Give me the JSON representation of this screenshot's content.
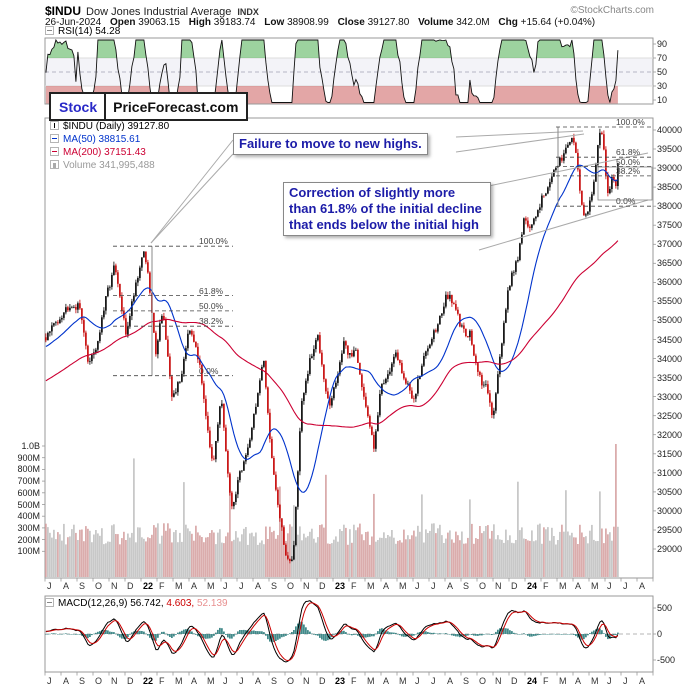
{
  "header": {
    "symbol": "$INDU",
    "name": "Dow Jones Industrial Average",
    "exchange": "INDX",
    "copyright": "©StockCharts.com",
    "date": "26-Jun-2024",
    "quote": {
      "open_label": "Open",
      "open": "39063.15",
      "high_label": "High",
      "high": "39183.74",
      "low_label": "Low",
      "low": "38908.99",
      "close_label": "Close",
      "close": "39127.80",
      "volume_label": "Volume",
      "volume": "342.0M",
      "chg_label": "Chg",
      "chg": "+15.64 (+0.04%)"
    }
  },
  "watermark": {
    "brand": "Stock",
    "site": "PriceForecast.com"
  },
  "rsi_panel": {
    "label": "RSI(14) 54.28"
  },
  "legend": {
    "series": "$INDU (Daily) 39127.80",
    "ma50": "MA(50) 38815.61",
    "ma200": "MA(200) 37151.43",
    "volume": "Volume 341,995,488"
  },
  "macd_panel": {
    "name": "MACD(12,26,9)",
    "v1": "56.742,",
    "v2": "4.603,",
    "v3": "52.139"
  },
  "chart_data": {
    "type": "candlestick",
    "title": "$INDU Dow Jones Industrial Average (Daily)",
    "timeframe": "daily, Jul-2021 to Jun-2024",
    "annotations": [
      "Failure to move to new highs.",
      "Correction of slightly more than 61.8% of the initial decline that ends below the initial high"
    ],
    "x_axis": {
      "unit": "months from Jul-2021",
      "labels": [
        "J",
        "A",
        "S",
        "O",
        "N",
        "D",
        "22",
        "F",
        "M",
        "A",
        "M",
        "J",
        "J",
        "A",
        "S",
        "O",
        "N",
        "D",
        "23",
        "F",
        "M",
        "A",
        "M",
        "J",
        "J",
        "A",
        "S",
        "O",
        "N",
        "D",
        "24",
        "F",
        "M",
        "A",
        "M",
        "J",
        "J",
        "A"
      ]
    },
    "price_axis": {
      "min": 29000,
      "max": 40000,
      "step": 500
    },
    "series_waypoints": [
      [
        0,
        34550
      ],
      [
        0.6,
        34950
      ],
      [
        1.5,
        35450
      ],
      [
        2.2,
        35300
      ],
      [
        2.6,
        33900
      ],
      [
        3.2,
        34350
      ],
      [
        3.9,
        35850
      ],
      [
        4.3,
        36420
      ],
      [
        5.0,
        34640
      ],
      [
        5.6,
        35950
      ],
      [
        6.15,
        36900
      ],
      [
        6.5,
        35750
      ],
      [
        6.85,
        34150
      ],
      [
        7.3,
        35350
      ],
      [
        7.85,
        32980
      ],
      [
        8.4,
        33400
      ],
      [
        8.95,
        34900
      ],
      [
        9.4,
        34350
      ],
      [
        9.9,
        32950
      ],
      [
        10.45,
        31050
      ],
      [
        10.95,
        33000
      ],
      [
        11.6,
        29950
      ],
      [
        12.0,
        30800
      ],
      [
        12.6,
        31600
      ],
      [
        13.15,
        32850
      ],
      [
        13.6,
        33950
      ],
      [
        14.1,
        31500
      ],
      [
        14.65,
        29700
      ],
      [
        15.0,
        28850
      ],
      [
        15.45,
        28700
      ],
      [
        15.95,
        32700
      ],
      [
        16.5,
        33900
      ],
      [
        17.0,
        34590
      ],
      [
        17.7,
        32700
      ],
      [
        18.0,
        33150
      ],
      [
        18.6,
        34350
      ],
      [
        19.05,
        34080
      ],
      [
        19.4,
        34250
      ],
      [
        20.0,
        32660
      ],
      [
        20.5,
        31750
      ],
      [
        20.95,
        33270
      ],
      [
        21.5,
        33750
      ],
      [
        21.95,
        34100
      ],
      [
        22.35,
        33550
      ],
      [
        22.95,
        32900
      ],
      [
        23.5,
        33800
      ],
      [
        23.95,
        34400
      ],
      [
        24.5,
        34950
      ],
      [
        25.0,
        35560
      ],
      [
        25.25,
        35650
      ],
      [
        26.05,
        34720
      ],
      [
        26.5,
        34650
      ],
      [
        27.05,
        33500
      ],
      [
        27.6,
        33150
      ],
      [
        27.9,
        32400
      ],
      [
        28.4,
        34150
      ],
      [
        28.95,
        35950
      ],
      [
        29.5,
        36700
      ],
      [
        29.9,
        37700
      ],
      [
        30.3,
        37350
      ],
      [
        30.95,
        38150
      ],
      [
        31.5,
        38650
      ],
      [
        31.95,
        38990
      ],
      [
        32.7,
        39780
      ],
      [
        32.95,
        39800
      ],
      [
        33.25,
        39050
      ],
      [
        33.55,
        37750
      ],
      [
        33.95,
        37900
      ],
      [
        34.3,
        38900
      ],
      [
        34.62,
        40020
      ],
      [
        34.8,
        39700
      ],
      [
        35.05,
        38650
      ],
      [
        35.15,
        38100
      ],
      [
        35.45,
        38850
      ],
      [
        35.6,
        38350
      ],
      [
        35.85,
        39128
      ]
    ],
    "volume_spikes": [
      [
        5.55,
        880
      ],
      [
        8.6,
        760
      ],
      [
        11.55,
        850
      ],
      [
        14.6,
        720
      ],
      [
        15.45,
        600
      ],
      [
        17.55,
        800
      ],
      [
        20.55,
        700
      ],
      [
        23.55,
        640
      ],
      [
        26.55,
        600
      ],
      [
        29.55,
        720
      ],
      [
        32.55,
        700
      ],
      [
        34.62,
        650
      ],
      [
        35.68,
        1000
      ]
    ],
    "last_bar": {
      "date": "26-Jun-2024",
      "open": 39063.15,
      "high": 39183.74,
      "low": 38908.99,
      "close": 39127.8,
      "volume": "342.0M",
      "chg": "+15.64 (+0.04%)"
    },
    "indicators": {
      "rsi": {
        "period": 14,
        "value": 54.28,
        "ticks": [
          90,
          70,
          50,
          30,
          10
        ]
      },
      "ma50": {
        "value": 38815.61
      },
      "ma200": {
        "value": 37151.43
      },
      "volume": {
        "value": "341,995,488",
        "axis_ticks": [
          "1.0B",
          "900M",
          "800M",
          "700M",
          "600M",
          "500M",
          "400M",
          "300M",
          "200M",
          "100M"
        ]
      },
      "macd": {
        "params": [
          12,
          26,
          9
        ],
        "values": [
          56.742,
          4.603,
          52.139
        ],
        "ticks": [
          500,
          0,
          -500
        ]
      }
    },
    "fibonacci": {
      "left": {
        "high": 36950,
        "low": 33550,
        "levels": [
          "100.0%",
          "61.8%",
          "50.0%",
          "38.2%",
          "0.0%"
        ]
      },
      "right": {
        "high": 40080,
        "low": 38000,
        "levels": [
          "100.0%",
          "61.8%",
          "50.0%",
          "38.2%",
          "0.0%"
        ]
      }
    },
    "colors": {
      "up": "#000000",
      "down": "#c40000",
      "ma50": "#0033cc",
      "ma200": "#cc0033",
      "volume_up": "#c2c2c2",
      "volume_down": "#d6a3a3",
      "macd_line": "#000000",
      "macd_signal": "#cc0000",
      "macd_signal_light": "#e89090",
      "macd_hist": "#2e7d7d",
      "rsi_over_fill": "#4caf50",
      "rsi_under_fill": "#cc5c5c",
      "annotation_text": "#1c1ca8",
      "watermark_brand": "#2929c8"
    }
  }
}
